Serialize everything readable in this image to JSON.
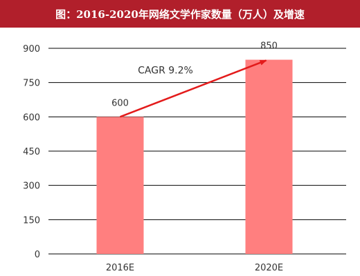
{
  "title": "图：2016-2020年网络文学作家数量（万人）及增速",
  "colors": {
    "title_bar": "#b11f2b",
    "bar": "#ff7f7f",
    "arrow": "#e31b1b",
    "grid": "#000000",
    "text": "#333333"
  },
  "chart_data": {
    "type": "bar",
    "title": "图：2016-2020年网络文学作家数量（万人）及增速",
    "categories": [
      "2016E",
      "2020E"
    ],
    "values": [
      600,
      850
    ],
    "data_labels": [
      "600",
      "850"
    ],
    "ylim": [
      0,
      900
    ],
    "yticks": [
      0,
      150,
      300,
      450,
      600,
      750,
      900
    ],
    "ytick_labels": [
      "0",
      "150",
      "300",
      "450",
      "600",
      "750",
      "900"
    ],
    "grid": true,
    "legend": "none",
    "annotation": {
      "text": "CAGR 9.2%",
      "type": "arrow",
      "from_category": "2016E",
      "to_category": "2020E"
    }
  }
}
